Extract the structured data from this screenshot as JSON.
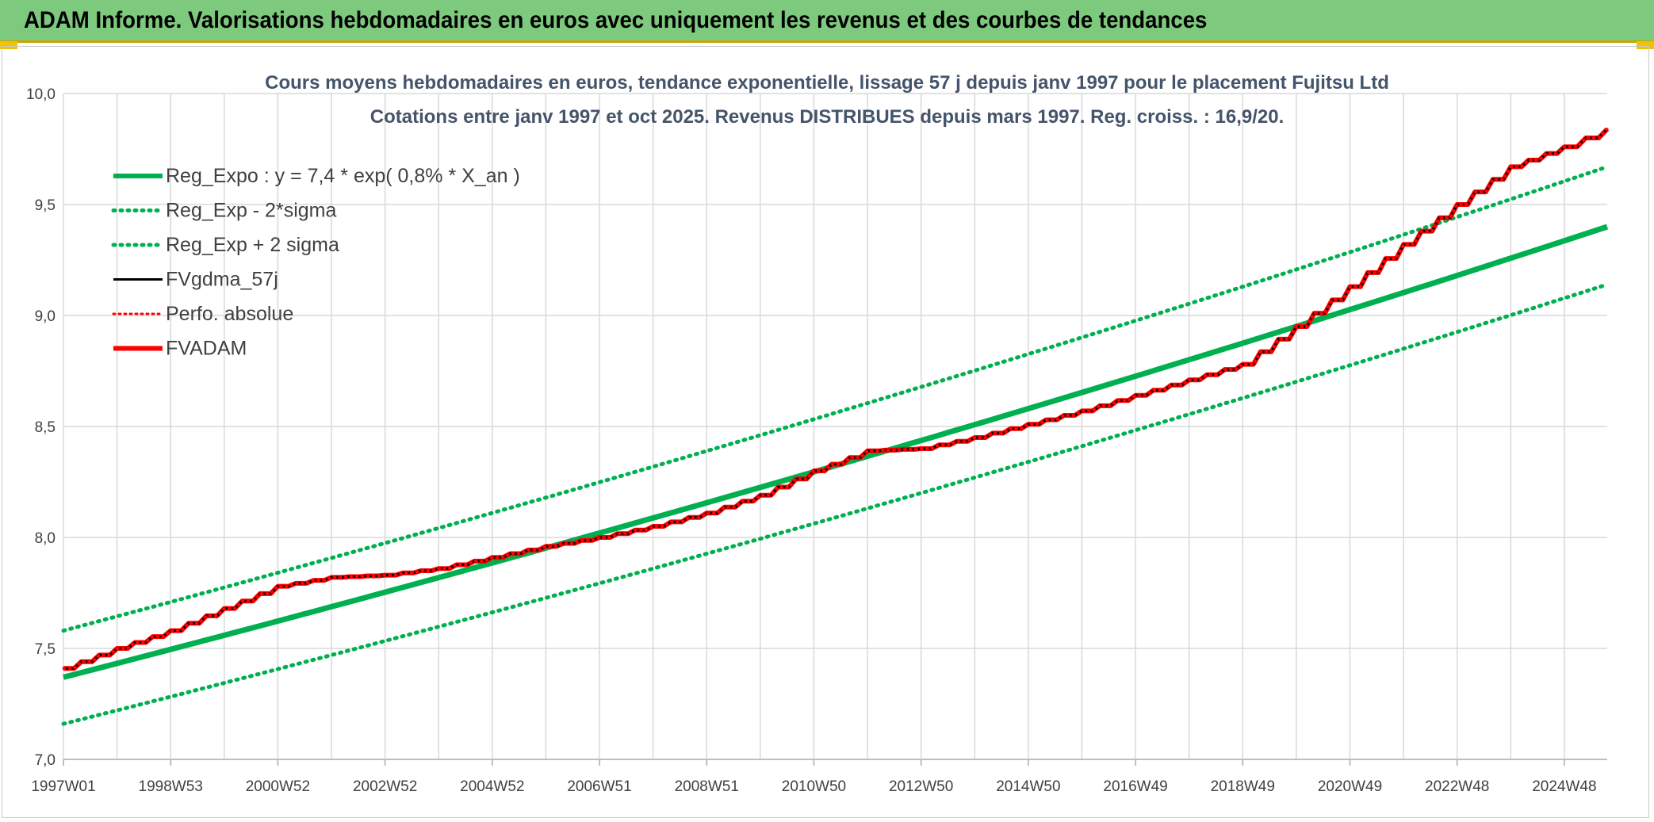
{
  "banner": {
    "title": "ADAM Informe. Valorisations hebdomadaires en euros avec uniquement les revenus et des courbes de tendances"
  },
  "colors": {
    "banner_bg": "#7dc97d",
    "trend": "#00b050",
    "fvgdma": "#000000",
    "perfo": "#ff0000",
    "fvadam": "#ff0000",
    "title_text": "#44546a"
  },
  "chart_data": {
    "type": "line",
    "title": "Cours moyens hebdomadaires en euros, tendance exponentielle, lissage 57 j depuis janv 1997 pour le placement Fujitsu Ltd",
    "subtitle": "Cotations entre janv 1997 et oct 2025. Revenus DISTRIBUES depuis mars 1997. Reg. croiss. : 16,9/20.",
    "xlabel": "",
    "ylabel": "",
    "ylim": [
      7.0,
      10.0
    ],
    "xlim": [
      1997.0,
      2025.8
    ],
    "y_ticks": [
      "7,0",
      "7,5",
      "8,0",
      "8,5",
      "9,0",
      "9,5",
      "10,0"
    ],
    "x_tick_labels": [
      "1997W01",
      "1998W53",
      "2000W52",
      "2002W52",
      "2004W52",
      "2006W51",
      "2008W51",
      "2010W50",
      "2012W50",
      "2014W50",
      "2016W49",
      "2018W49",
      "2020W49",
      "2022W48",
      "2024W48"
    ],
    "x_tick_years": [
      1997.0,
      1999.0,
      2001.0,
      2003.0,
      2005.0,
      2007.0,
      2009.0,
      2011.0,
      2013.0,
      2015.0,
      2017.0,
      2019.0,
      2021.0,
      2023.0,
      2025.0
    ],
    "grid": true,
    "legend_position": "top-left",
    "series": [
      {
        "name": "Reg_Expo : y = 7,4 * exp( 0,8% *  X_an )",
        "style": "solid-thick",
        "x": [
          1997.0,
          2025.8
        ],
        "y": [
          7.37,
          9.4
        ],
        "curve": "exponential"
      },
      {
        "name": "Reg_Exp - 2*sigma",
        "style": "dotted",
        "x": [
          1997.0,
          2025.8
        ],
        "y": [
          7.16,
          9.14
        ],
        "curve": "exponential"
      },
      {
        "name": "Reg_Exp + 2 sigma",
        "style": "dotted",
        "x": [
          1997.0,
          2025.8
        ],
        "y": [
          7.58,
          9.67
        ],
        "curve": "exponential"
      },
      {
        "name": "FVgdma_57j",
        "style": "solid-thin",
        "follows": "FVADAM"
      },
      {
        "name": "Perfo. absolue",
        "style": "dotted-red",
        "follows": "FVADAM"
      },
      {
        "name": "FVADAM",
        "style": "step-thick",
        "x": [
          1997.0,
          1998.0,
          1999.0,
          2000.0,
          2001.0,
          2002.0,
          2003.0,
          2004.0,
          2005.0,
          2006.0,
          2007.0,
          2008.0,
          2009.0,
          2010.0,
          2011.0,
          2012.0,
          2013.0,
          2014.0,
          2015.0,
          2016.0,
          2017.0,
          2018.0,
          2019.0,
          2020.0,
          2021.0,
          2022.0,
          2023.0,
          2024.0,
          2025.0,
          2025.8
        ],
        "y": [
          7.41,
          7.5,
          7.58,
          7.68,
          7.78,
          7.82,
          7.83,
          7.86,
          7.91,
          7.96,
          8.0,
          8.05,
          8.11,
          8.19,
          8.3,
          8.39,
          8.4,
          8.45,
          8.51,
          8.57,
          8.64,
          8.71,
          8.78,
          8.95,
          9.13,
          9.32,
          9.5,
          9.67,
          9.76,
          9.84
        ]
      }
    ]
  }
}
